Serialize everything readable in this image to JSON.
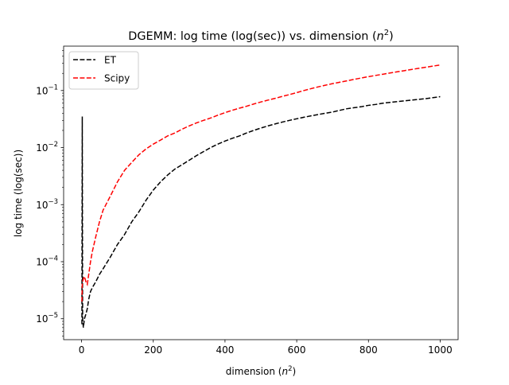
{
  "chart_data": {
    "type": "line",
    "title": "DGEMM: log time (log(sec)) vs. dimension (n²)",
    "title_main": "DGEMM: log time (log(sec)) vs. dimension (",
    "title_var": "n",
    "title_sup": "2",
    "title_close": ")",
    "xlabel": "dimension (n²)",
    "xlabel_main": "dimension (",
    "xlabel_var": "n",
    "xlabel_sup": "2",
    "xlabel_close": ")",
    "ylabel": "log time (log(sec))",
    "xscale": "linear",
    "yscale": "log",
    "xlim": [
      -50,
      1050
    ],
    "ylim": [
      4.3e-06,
      0.6
    ],
    "xticks": [
      0,
      200,
      400,
      600,
      800,
      1000
    ],
    "xtick_labels": [
      "0",
      "200",
      "400",
      "600",
      "800",
      "1000"
    ],
    "yticks": [
      1e-05,
      0.0001,
      0.001,
      0.01,
      0.1
    ],
    "ytick_base": "10",
    "ytick_exps": [
      "−5",
      "−4",
      "−3",
      "−2",
      "−1"
    ],
    "grid": false,
    "legend_position": "top-left",
    "series": [
      {
        "name": "ET",
        "color": "#000000",
        "linestyle": "dashed",
        "x": [
          1,
          2,
          3,
          5,
          8,
          12,
          16,
          20,
          25,
          30,
          40,
          50,
          60,
          80,
          100,
          120,
          140,
          160,
          180,
          200,
          220,
          240,
          260,
          280,
          300,
          320,
          340,
          360,
          380,
          400,
          420,
          440,
          460,
          480,
          500,
          520,
          540,
          560,
          580,
          600,
          620,
          640,
          660,
          680,
          700,
          720,
          740,
          760,
          780,
          800,
          820,
          840,
          860,
          880,
          900,
          920,
          940,
          960,
          980,
          1000
        ],
        "y": [
          8e-06,
          0.035,
          1e-05,
          7e-06,
          1e-05,
          1.2e-05,
          1.5e-05,
          2.2e-05,
          3e-05,
          3.5e-05,
          4.5e-05,
          6e-05,
          7.5e-05,
          0.00012,
          0.0002,
          0.0003,
          0.0005,
          0.00075,
          0.0012,
          0.0018,
          0.0025,
          0.0033,
          0.0042,
          0.005,
          0.006,
          0.0072,
          0.0085,
          0.01,
          0.0115,
          0.013,
          0.0145,
          0.016,
          0.018,
          0.02,
          0.022,
          0.024,
          0.026,
          0.028,
          0.03,
          0.032,
          0.034,
          0.036,
          0.038,
          0.04,
          0.042,
          0.045,
          0.048,
          0.05,
          0.052,
          0.055,
          0.057,
          0.06,
          0.062,
          0.064,
          0.066,
          0.068,
          0.07,
          0.072,
          0.075,
          0.078
        ]
      },
      {
        "name": "Scipy",
        "color": "#ff0000",
        "linestyle": "dashed",
        "x": [
          1,
          2,
          3,
          5,
          8,
          12,
          16,
          20,
          25,
          30,
          40,
          50,
          60,
          80,
          100,
          120,
          140,
          160,
          180,
          200,
          220,
          240,
          260,
          280,
          300,
          320,
          340,
          360,
          380,
          400,
          420,
          440,
          460,
          480,
          500,
          520,
          540,
          560,
          580,
          600,
          620,
          640,
          660,
          680,
          700,
          720,
          740,
          760,
          780,
          800,
          820,
          840,
          860,
          880,
          900,
          920,
          940,
          960,
          980,
          1000
        ],
        "y": [
          2e-05,
          4e-05,
          4.5e-05,
          5e-05,
          5.5e-05,
          4.5e-05,
          4e-05,
          6e-05,
          0.0001,
          0.00015,
          0.00028,
          0.0005,
          0.0008,
          0.0014,
          0.0025,
          0.004,
          0.0055,
          0.0075,
          0.0095,
          0.0115,
          0.0135,
          0.016,
          0.018,
          0.021,
          0.024,
          0.027,
          0.03,
          0.033,
          0.037,
          0.041,
          0.045,
          0.049,
          0.053,
          0.058,
          0.063,
          0.068,
          0.073,
          0.079,
          0.085,
          0.092,
          0.1,
          0.108,
          0.116,
          0.124,
          0.132,
          0.14,
          0.148,
          0.157,
          0.166,
          0.175,
          0.184,
          0.193,
          0.203,
          0.213,
          0.223,
          0.234,
          0.245,
          0.256,
          0.268,
          0.28
        ]
      }
    ]
  }
}
